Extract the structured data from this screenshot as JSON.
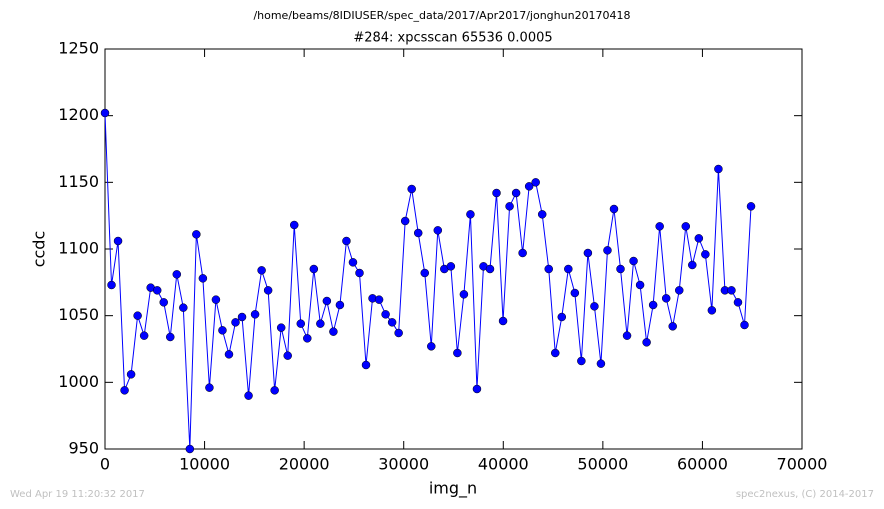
{
  "chart_data": {
    "type": "line",
    "suptitle": "/home/beams/8IDIUSER/spec_data/2017/Apr2017/jonghun20170418",
    "title": "#284: xpcsscan 65536 0.0005",
    "xlabel": "img_n",
    "ylabel": "ccdc",
    "timestamp": "Wed Apr 19 11:20:32 2017",
    "credit": "spec2nexus, (C) 2014-2017",
    "color": "#0000ff",
    "marker": "circle",
    "x": [
      0,
      655,
      1311,
      1966,
      2621,
      3277,
      3932,
      4588,
      5243,
      5898,
      6554,
      7209,
      7864,
      8520,
      9175,
      9830,
      10486,
      11141,
      11796,
      12452,
      13107,
      13763,
      14418,
      15073,
      15729,
      16384,
      17039,
      17695,
      18350,
      19005,
      19661,
      20316,
      20972,
      21627,
      22282,
      22938,
      23593,
      24248,
      24904,
      25559,
      26214,
      26870,
      27525,
      28180,
      28836,
      29491,
      30147,
      30802,
      31457,
      32113,
      32768,
      33423,
      34079,
      34734,
      35389,
      36045,
      36700,
      37356,
      38011,
      38666,
      39322,
      39977,
      40632,
      41288,
      41943,
      42598,
      43254,
      43909,
      44564,
      45220,
      45875,
      46531,
      47186,
      47841,
      48497,
      49152,
      49807,
      50463,
      51118,
      51773,
      52429,
      53084,
      53740,
      54395,
      55050,
      55706,
      56361,
      57016,
      57672,
      58327,
      58982,
      59638,
      60293,
      60948,
      61604,
      62259,
      62915,
      63570,
      64225,
      64881
    ],
    "values": [
      1202,
      1073,
      1106,
      994,
      1006,
      1050,
      1035,
      1071,
      1069,
      1060,
      1034,
      1081,
      1056,
      950,
      1111,
      1078,
      996,
      1062,
      1039,
      1021,
      1045,
      1049,
      990,
      1051,
      1084,
      1069,
      994,
      1041,
      1020,
      1118,
      1044,
      1033,
      1085,
      1044,
      1061,
      1038,
      1058,
      1106,
      1090,
      1082,
      1013,
      1063,
      1062,
      1051,
      1045,
      1037,
      1121,
      1145,
      1112,
      1082,
      1027,
      1114,
      1085,
      1087,
      1022,
      1066,
      1126,
      995,
      1087,
      1085,
      1142,
      1046,
      1132,
      1142,
      1097,
      1147,
      1150,
      1126,
      1085,
      1022,
      1049,
      1085,
      1067,
      1016,
      1097,
      1057,
      1014,
      1099,
      1130,
      1085,
      1035,
      1091,
      1073,
      1030,
      1058,
      1117,
      1063,
      1042,
      1069,
      1117,
      1088,
      1108,
      1096,
      1054,
      1160,
      1069,
      1069,
      1060,
      1043,
      1132
    ],
    "xlim": [
      0,
      70000
    ],
    "xticks": [
      0,
      10000,
      20000,
      30000,
      40000,
      50000,
      60000,
      70000
    ],
    "ylim": [
      950,
      1250
    ],
    "yticks": [
      950,
      1000,
      1050,
      1100,
      1150,
      1200,
      1250
    ],
    "grid": false
  }
}
